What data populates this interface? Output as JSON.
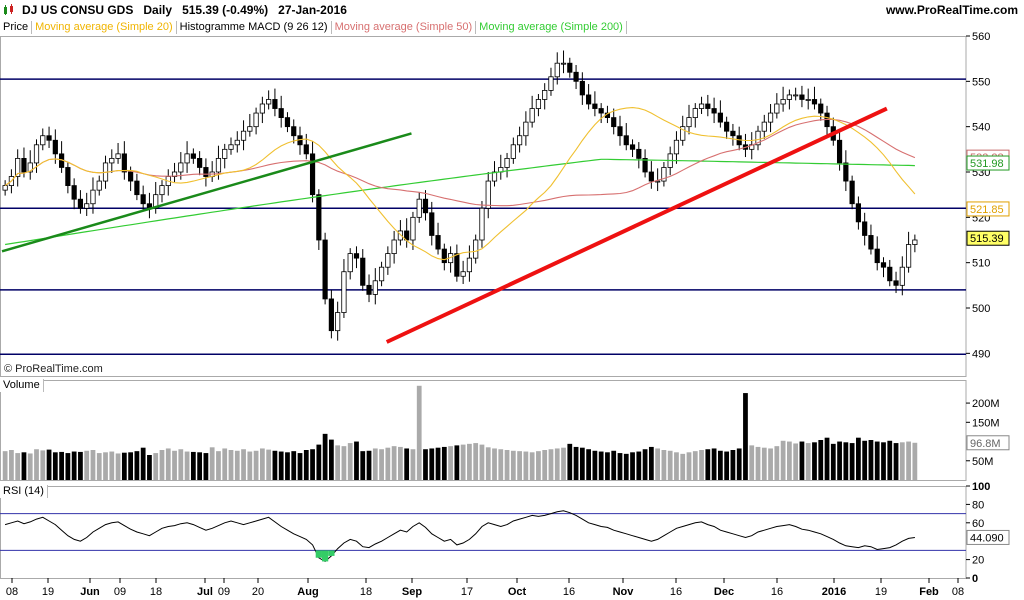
{
  "header": {
    "symbol": "DJ US CONSU GDS",
    "period": "Daily",
    "last": "515.39 (-0.49%)",
    "date": "27-Jan-2016",
    "site": "www.ProRealTime.com"
  },
  "legend": [
    {
      "label": "Price",
      "color": "#000000"
    },
    {
      "label": "Moving average (Simple 20)",
      "color": "#f0b400"
    },
    {
      "label": "Histogramme MACD (9 26 12)",
      "color": "#000000"
    },
    {
      "label": "Moving average (Simple 50)",
      "color": "#d77070"
    },
    {
      "label": "Moving average (Simple 200)",
      "color": "#33cc33"
    }
  ],
  "credit": "© ProRealTime.com",
  "volume_title": "Volume",
  "rsi_title": "RSI (14)",
  "colors": {
    "up": "#ffffff",
    "down": "#000000",
    "frame": "#aaaaaa",
    "level": "#000066",
    "trend_green": "#1a8a1a",
    "trend_red": "#ee1111",
    "ma20": "#f0c030",
    "ma50": "#d77070",
    "ma200": "#33cc33",
    "rsi_band": "#3333aa",
    "vol_bar": "#aaaaaa"
  },
  "chart_data": {
    "type": "line",
    "title": "DJ US CONSU GDS Daily",
    "x_ticks": [
      "08",
      "19",
      "Jun",
      "09",
      "18",
      "Jul",
      "09",
      "20",
      "Aug",
      "18",
      "Sep",
      "17",
      "Oct",
      "16",
      "Nov",
      "16",
      "Dec",
      "16",
      "2016",
      "19",
      "Feb",
      "08"
    ],
    "price_axis": {
      "ticks": [
        560,
        550,
        540,
        530,
        520,
        510,
        500,
        490
      ],
      "range": [
        485,
        560
      ]
    },
    "levels": [
      550.5,
      522.0,
      504.0,
      489.8
    ],
    "closes": [
      527,
      529,
      533,
      530,
      532,
      536,
      538,
      537,
      534,
      531,
      527,
      524,
      522,
      523,
      526,
      528,
      532,
      533,
      534,
      530,
      528,
      525,
      523,
      522,
      525,
      527,
      529,
      530,
      532,
      534,
      533,
      531,
      529,
      530,
      533,
      535,
      536,
      537,
      539,
      540,
      543,
      545,
      546,
      544,
      542,
      540,
      538,
      536,
      534,
      525,
      515,
      502,
      495,
      499,
      508,
      512,
      511,
      505,
      503,
      506,
      509,
      512,
      515,
      517,
      515,
      520,
      524,
      521,
      516,
      513,
      510,
      512,
      507,
      508,
      511,
      515,
      522,
      528,
      530,
      531,
      533,
      536,
      538,
      541,
      544,
      546,
      548,
      551,
      554,
      554,
      552,
      550,
      547,
      545,
      544,
      543,
      542,
      540,
      538,
      536,
      535,
      533,
      530,
      528,
      528,
      531,
      534,
      537,
      540,
      542,
      544,
      545,
      544,
      543,
      541,
      539,
      538,
      536,
      535,
      536,
      539,
      541,
      543,
      545,
      546,
      547,
      547,
      546,
      546,
      545,
      543,
      540,
      537,
      532,
      528,
      523,
      519,
      516,
      513,
      510,
      509,
      506,
      505,
      509,
      514,
      515
    ],
    "ma20_end": 521.85,
    "ma50_end": 533.28,
    "ma200_end": 531.98,
    "price_tags": [
      {
        "value": "533.28",
        "color": "#c86b6b"
      },
      {
        "value": "531.98",
        "color": "#229922"
      },
      {
        "value": "521.85",
        "color": "#e0a000"
      },
      {
        "value": "515.39",
        "color": "#000000"
      }
    ],
    "trendlines": [
      {
        "name": "green support",
        "from": [
          "2015-05-01",
          512.5
        ],
        "to": [
          "2015-08-17",
          538.5
        ]
      },
      {
        "name": "red support",
        "from": [
          "2015-08-24",
          492.5
        ],
        "to": [
          "2016-01-12",
          544.0
        ]
      }
    ],
    "volume_axis": {
      "ticks": [
        "200M",
        "150M",
        "50M"
      ],
      "tag": "96.8M"
    },
    "volume": [
      75,
      78,
      70,
      72,
      69,
      80,
      77,
      79,
      72,
      73,
      70,
      74,
      73,
      76,
      78,
      70,
      72,
      74,
      69,
      71,
      72,
      75,
      84,
      65,
      70,
      78,
      82,
      76,
      80,
      74,
      73,
      72,
      70,
      85,
      75,
      82,
      78,
      76,
      80,
      74,
      76,
      82,
      79,
      76,
      74,
      72,
      75,
      70,
      78,
      80,
      92,
      120,
      105,
      90,
      88,
      96,
      100,
      75,
      76,
      82,
      80,
      84,
      88,
      86,
      82,
      80,
      245,
      80,
      82,
      84,
      86,
      88,
      90,
      92,
      94,
      96,
      92,
      85,
      82,
      80,
      78,
      76,
      75,
      74,
      72,
      75,
      78,
      80,
      82,
      84,
      94,
      86,
      84,
      80,
      76,
      74,
      72,
      76,
      70,
      68,
      72,
      74,
      80,
      86,
      82,
      78,
      76,
      72,
      68,
      72,
      75,
      78,
      80,
      82,
      76,
      74,
      78,
      82,
      226,
      90,
      86,
      84,
      82,
      88,
      102,
      100,
      95,
      100,
      96,
      98,
      104,
      110,
      94,
      100,
      98,
      96,
      110,
      102,
      104,
      100,
      98,
      102,
      96,
      98,
      100,
      96.8
    ],
    "rsi_axis": {
      "ticks": [
        100,
        80,
        60,
        44.09,
        20,
        0
      ],
      "bands": [
        70,
        30
      ],
      "tag": "44.090"
    },
    "rsi": [
      58,
      60,
      62,
      59,
      61,
      64,
      66,
      62,
      58,
      52,
      46,
      42,
      40,
      44,
      50,
      54,
      58,
      60,
      61,
      57,
      53,
      50,
      48,
      46,
      50,
      54,
      56,
      57,
      59,
      60,
      58,
      55,
      52,
      54,
      57,
      60,
      62,
      60,
      58,
      60,
      62,
      64,
      66,
      61,
      56,
      52,
      48,
      45,
      42,
      36,
      22,
      18,
      24,
      32,
      38,
      42,
      40,
      34,
      33,
      37,
      40,
      44,
      48,
      52,
      50,
      56,
      60,
      55,
      48,
      44,
      40,
      42,
      36,
      38,
      42,
      48,
      56,
      60,
      58,
      56,
      58,
      62,
      64,
      66,
      68,
      67,
      68,
      70,
      72,
      73,
      71,
      68,
      64,
      60,
      58,
      56,
      55,
      52,
      50,
      48,
      46,
      44,
      42,
      40,
      42,
      46,
      50,
      54,
      56,
      58,
      60,
      61,
      58,
      56,
      52,
      50,
      48,
      46,
      44,
      46,
      50,
      52,
      54,
      56,
      57,
      58,
      56,
      53,
      52,
      50,
      48,
      45,
      42,
      38,
      35,
      34,
      33,
      35,
      34,
      31,
      32,
      33,
      36,
      40,
      43,
      44
    ]
  }
}
